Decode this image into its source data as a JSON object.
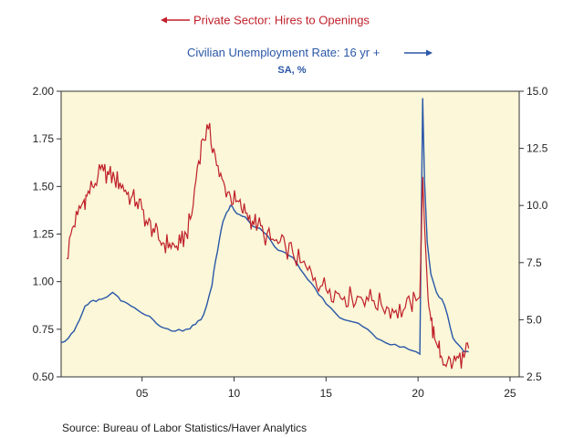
{
  "source_text": "Source:  Bureau of Labor Statistics/Haver Analytics",
  "colors": {
    "hires": "#c0202a",
    "unemployment": "#2a57a8",
    "plot_bg": "#fbf7d8",
    "axis": "#333333"
  },
  "chart_data": {
    "type": "line",
    "title": "",
    "legend": [
      {
        "series": "hires",
        "text": "Private Sector: Hires to Openings",
        "arrow": "left",
        "axis": "left"
      },
      {
        "series": "unemployment",
        "text": "Civilian Unemployment Rate: 16 yr +",
        "arrow": "right",
        "axis": "right"
      }
    ],
    "subtitle": "SA, %",
    "x_axis": {
      "min": 2000.6,
      "max": 2025.5,
      "ticks": [
        2005,
        2010,
        2015,
        2020,
        2025
      ],
      "tick_labels": [
        "05",
        "10",
        "15",
        "20",
        "25"
      ]
    },
    "y_left": {
      "min": 0.5,
      "max": 2.0,
      "ticks": [
        0.5,
        0.75,
        1.0,
        1.25,
        1.5,
        1.75,
        2.0
      ],
      "tick_labels": [
        "0.50",
        "0.75",
        "1.00",
        "1.25",
        "1.50",
        "1.75",
        "2.00"
      ]
    },
    "y_right": {
      "min": 2.5,
      "max": 15.0,
      "ticks": [
        2.5,
        5.0,
        7.5,
        10.0,
        12.5,
        15.0
      ],
      "tick_labels": [
        "2.5",
        "5.0",
        "7.5",
        "10.0",
        "12.5",
        "15.0"
      ]
    },
    "grid": false,
    "series": [
      {
        "id": "hires",
        "name": "Private Sector: Hires to Openings",
        "axis": "left",
        "x": [
          2000.9,
          2001.2,
          2001.5,
          2001.8,
          2002.0,
          2002.3,
          2002.6,
          2002.9,
          2003.2,
          2003.5,
          2003.8,
          2004.1,
          2004.4,
          2004.7,
          2005.0,
          2005.3,
          2005.6,
          2005.9,
          2006.2,
          2006.5,
          2006.8,
          2007.1,
          2007.4,
          2007.7,
          2008.0,
          2008.3,
          2008.6,
          2008.9,
          2009.2,
          2009.5,
          2009.8,
          2010.1,
          2010.4,
          2010.7,
          2011.0,
          2011.3,
          2011.6,
          2012.0,
          2012.4,
          2012.8,
          2013.2,
          2013.6,
          2014.0,
          2014.4,
          2014.8,
          2015.2,
          2015.6,
          2016.0,
          2016.4,
          2016.8,
          2017.2,
          2017.6,
          2018.0,
          2018.4,
          2018.8,
          2019.2,
          2019.6,
          2019.9,
          2020.1,
          2020.25,
          2020.35,
          2020.5,
          2020.7,
          2020.9,
          2021.1,
          2021.3,
          2021.6,
          2021.9,
          2022.2,
          2022.5,
          2022.75
        ],
        "y": [
          1.12,
          1.28,
          1.35,
          1.42,
          1.45,
          1.5,
          1.55,
          1.58,
          1.56,
          1.54,
          1.52,
          1.48,
          1.44,
          1.42,
          1.38,
          1.3,
          1.28,
          1.22,
          1.2,
          1.2,
          1.18,
          1.2,
          1.25,
          1.35,
          1.6,
          1.75,
          1.8,
          1.7,
          1.55,
          1.5,
          1.45,
          1.42,
          1.38,
          1.36,
          1.32,
          1.3,
          1.25,
          1.22,
          1.2,
          1.18,
          1.15,
          1.1,
          1.06,
          1.02,
          0.98,
          0.96,
          0.94,
          0.92,
          0.92,
          0.92,
          0.92,
          0.9,
          0.88,
          0.86,
          0.85,
          0.85,
          0.88,
          0.9,
          0.92,
          1.55,
          1.3,
          1.0,
          0.8,
          0.7,
          0.65,
          0.6,
          0.58,
          0.57,
          0.6,
          0.6,
          0.65
        ]
      },
      {
        "id": "unemployment",
        "name": "Civilian Unemployment Rate: 16 yr +",
        "axis": "right",
        "x": [
          2000.6,
          2001.0,
          2001.3,
          2001.6,
          2001.9,
          2002.2,
          2002.5,
          2002.8,
          2003.1,
          2003.4,
          2003.7,
          2004.0,
          2004.4,
          2004.8,
          2005.2,
          2005.6,
          2006.0,
          2006.4,
          2006.8,
          2007.2,
          2007.6,
          2007.9,
          2008.2,
          2008.5,
          2008.8,
          2009.0,
          2009.2,
          2009.4,
          2009.6,
          2009.8,
          2010.0,
          2010.3,
          2010.6,
          2011.0,
          2011.4,
          2011.8,
          2012.2,
          2012.6,
          2013.0,
          2013.4,
          2013.8,
          2014.2,
          2014.6,
          2015.0,
          2015.5,
          2016.0,
          2016.5,
          2017.0,
          2017.5,
          2018.0,
          2018.5,
          2019.0,
          2019.5,
          2019.9,
          2020.1,
          2020.25,
          2020.35,
          2020.5,
          2020.7,
          2021.0,
          2021.3,
          2021.6,
          2021.9,
          2022.2,
          2022.5,
          2022.75
        ],
        "y": [
          4.0,
          4.2,
          4.5,
          5.0,
          5.6,
          5.8,
          5.8,
          5.9,
          6.0,
          6.2,
          6.0,
          5.8,
          5.6,
          5.4,
          5.2,
          5.0,
          4.7,
          4.6,
          4.5,
          4.5,
          4.6,
          4.8,
          5.0,
          5.6,
          6.5,
          7.6,
          8.5,
          9.3,
          9.7,
          10.0,
          9.8,
          9.6,
          9.5,
          9.1,
          9.0,
          8.7,
          8.2,
          8.0,
          7.8,
          7.5,
          7.0,
          6.6,
          6.1,
          5.7,
          5.3,
          5.0,
          4.9,
          4.7,
          4.4,
          4.1,
          3.9,
          3.8,
          3.7,
          3.6,
          3.5,
          14.7,
          11.1,
          8.4,
          7.0,
          6.2,
          5.9,
          5.2,
          4.2,
          3.9,
          3.6,
          3.6
        ]
      }
    ]
  }
}
